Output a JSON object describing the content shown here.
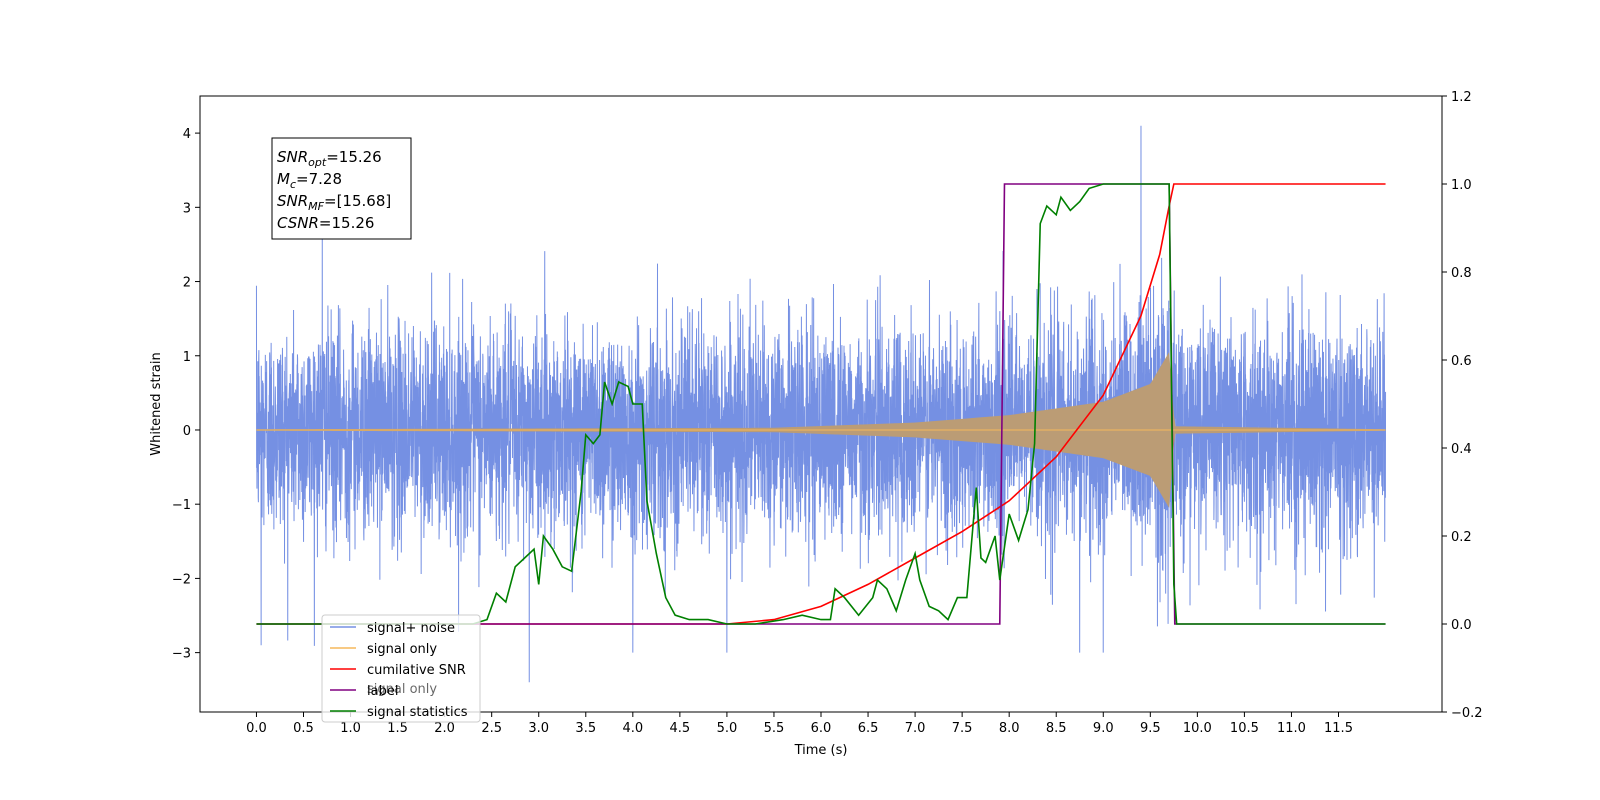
{
  "chart_data": {
    "type": "line",
    "title": "",
    "xlabel": "Time (s)",
    "ylabel": "Whitened strain",
    "ylabel_right": "",
    "xlim": [
      -0.6,
      12.6
    ],
    "ylim": [
      -3.8,
      4.5
    ],
    "ylim_right": [
      -0.2,
      1.2
    ],
    "x_ticks": [
      "0.0",
      "0.5",
      "1.0",
      "1.5",
      "2.0",
      "2.5",
      "3.0",
      "3.5",
      "4.0",
      "4.5",
      "5.0",
      "5.5",
      "6.0",
      "6.5",
      "7.0",
      "7.5",
      "8.0",
      "8.5",
      "9.0",
      "9.5",
      "10.0",
      "10.5",
      "11.0",
      "11.5"
    ],
    "y_ticks": [
      "−3",
      "−2",
      "−1",
      "0",
      "1",
      "2",
      "3",
      "4"
    ],
    "y_ticks_right": [
      "−0.2",
      "0.0",
      "0.2",
      "0.4",
      "0.6",
      "0.8",
      "1.0",
      "1.2"
    ],
    "grid": false,
    "legend_position": "lower-left",
    "annotation": {
      "lines": [
        {
          "sym": "SNR",
          "sub": "opt",
          "rest": "=15.26"
        },
        {
          "sym": "M",
          "sub": "c",
          "rest": "=7.28"
        },
        {
          "sym": "SNR",
          "sub": "MF",
          "rest": "=[15.68]"
        },
        {
          "sym": "CSNR",
          "sub": "",
          "rest": "=15.26"
        }
      ]
    },
    "series": [
      {
        "name": "signal+ noise",
        "axis": "left",
        "color": "#7590e3",
        "kind": "noise",
        "x_range": [
          0.0,
          12.0
        ],
        "envelope_sigma": 0.7,
        "notable_peaks": [
          {
            "x": 9.4,
            "y": 4.1
          },
          {
            "x": 0.7,
            "y": 2.7
          },
          {
            "x": 0.05,
            "y": -2.9
          },
          {
            "x": 2.9,
            "y": -3.4
          },
          {
            "x": 4.0,
            "y": -3.0
          },
          {
            "x": 5.0,
            "y": -3.0
          },
          {
            "x": 8.75,
            "y": -3.0
          },
          {
            "x": 9.0,
            "y": -3.0
          }
        ]
      },
      {
        "name": "signal only",
        "axis": "left",
        "color": "#f5b95b",
        "kind": "chirp",
        "x_range": [
          0.0,
          12.0
        ],
        "merger_time": 9.75,
        "amplitude_points": [
          [
            0.0,
            0.01
          ],
          [
            5.5,
            0.03
          ],
          [
            7.0,
            0.1
          ],
          [
            8.0,
            0.2
          ],
          [
            9.0,
            0.38
          ],
          [
            9.5,
            0.62
          ],
          [
            9.7,
            1.05
          ],
          [
            9.76,
            0.05
          ],
          [
            12.0,
            0.01
          ]
        ]
      },
      {
        "name": "cumilative SNR",
        "axis": "right",
        "color": "#ff0000",
        "points": [
          [
            0.0,
            0.0
          ],
          [
            5.0,
            0.0
          ],
          [
            5.5,
            0.01
          ],
          [
            6.0,
            0.04
          ],
          [
            6.5,
            0.09
          ],
          [
            7.0,
            0.15
          ],
          [
            7.5,
            0.21
          ],
          [
            8.0,
            0.28
          ],
          [
            8.5,
            0.38
          ],
          [
            9.0,
            0.52
          ],
          [
            9.4,
            0.7
          ],
          [
            9.6,
            0.84
          ],
          [
            9.7,
            0.95
          ],
          [
            9.75,
            1.0
          ],
          [
            12.0,
            1.0
          ]
        ]
      },
      {
        "name": "label",
        "axis": "right",
        "color": "#800080",
        "points": [
          [
            0.0,
            0.0
          ],
          [
            7.9,
            0.0
          ],
          [
            7.95,
            1.0
          ],
          [
            9.7,
            1.0
          ],
          [
            9.76,
            0.0
          ],
          [
            12.0,
            0.0
          ]
        ]
      },
      {
        "name": "signal statistics",
        "axis": "right",
        "color": "#008000",
        "points": [
          [
            0.0,
            0.0
          ],
          [
            2.3,
            0.0
          ],
          [
            2.45,
            0.01
          ],
          [
            2.55,
            0.07
          ],
          [
            2.65,
            0.05
          ],
          [
            2.75,
            0.13
          ],
          [
            2.85,
            0.15
          ],
          [
            2.95,
            0.17
          ],
          [
            3.0,
            0.09
          ],
          [
            3.05,
            0.2
          ],
          [
            3.15,
            0.17
          ],
          [
            3.25,
            0.13
          ],
          [
            3.35,
            0.12
          ],
          [
            3.45,
            0.3
          ],
          [
            3.5,
            0.43
          ],
          [
            3.58,
            0.41
          ],
          [
            3.65,
            0.43
          ],
          [
            3.7,
            0.55
          ],
          [
            3.78,
            0.5
          ],
          [
            3.85,
            0.55
          ],
          [
            3.95,
            0.54
          ],
          [
            4.0,
            0.5
          ],
          [
            4.1,
            0.5
          ],
          [
            4.15,
            0.28
          ],
          [
            4.25,
            0.16
          ],
          [
            4.35,
            0.06
          ],
          [
            4.45,
            0.02
          ],
          [
            4.6,
            0.01
          ],
          [
            4.8,
            0.01
          ],
          [
            5.0,
            0.0
          ],
          [
            5.3,
            0.0
          ],
          [
            5.6,
            0.01
          ],
          [
            5.8,
            0.02
          ],
          [
            6.0,
            0.01
          ],
          [
            6.1,
            0.01
          ],
          [
            6.15,
            0.08
          ],
          [
            6.25,
            0.06
          ],
          [
            6.4,
            0.02
          ],
          [
            6.55,
            0.06
          ],
          [
            6.6,
            0.1
          ],
          [
            6.7,
            0.08
          ],
          [
            6.8,
            0.03
          ],
          [
            6.9,
            0.1
          ],
          [
            7.0,
            0.16
          ],
          [
            7.05,
            0.1
          ],
          [
            7.15,
            0.04
          ],
          [
            7.25,
            0.03
          ],
          [
            7.35,
            0.01
          ],
          [
            7.45,
            0.06
          ],
          [
            7.55,
            0.06
          ],
          [
            7.65,
            0.31
          ],
          [
            7.7,
            0.15
          ],
          [
            7.75,
            0.14
          ],
          [
            7.85,
            0.2
          ],
          [
            7.9,
            0.1
          ],
          [
            8.0,
            0.25
          ],
          [
            8.1,
            0.19
          ],
          [
            8.2,
            0.26
          ],
          [
            8.27,
            0.41
          ],
          [
            8.33,
            0.91
          ],
          [
            8.4,
            0.95
          ],
          [
            8.5,
            0.93
          ],
          [
            8.55,
            0.97
          ],
          [
            8.65,
            0.94
          ],
          [
            8.75,
            0.96
          ],
          [
            8.85,
            0.99
          ],
          [
            9.0,
            1.0
          ],
          [
            9.7,
            1.0
          ],
          [
            9.75,
            0.09
          ],
          [
            9.78,
            0.0
          ],
          [
            12.0,
            0.0
          ]
        ]
      }
    ],
    "legend_extra_label": "signal only"
  }
}
